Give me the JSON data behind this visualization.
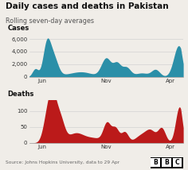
{
  "title": "Daily cases and deaths in Pakistan",
  "subtitle": "Rolling seven-day averages",
  "cases_label": "Cases",
  "deaths_label": "Deaths",
  "source_text": "Source: Johns Hopkins University, data to 29 Apr",
  "cases_color": "#2b8fa8",
  "deaths_color": "#bb1a1a",
  "background_color": "#f0ede8",
  "cases_yticks": [
    0,
    2000,
    4000,
    6000
  ],
  "deaths_yticks": [
    0,
    50,
    100
  ],
  "x_ticks_labels": [
    "Jun",
    "Nov",
    "Apr"
  ],
  "cases_ylim": [
    0,
    6800
  ],
  "deaths_ylim": [
    0,
    135
  ],
  "title_fontsize": 7.5,
  "subtitle_fontsize": 5.8,
  "tick_fontsize": 5.0,
  "label_fontsize": 6.0,
  "source_fontsize": 4.2
}
